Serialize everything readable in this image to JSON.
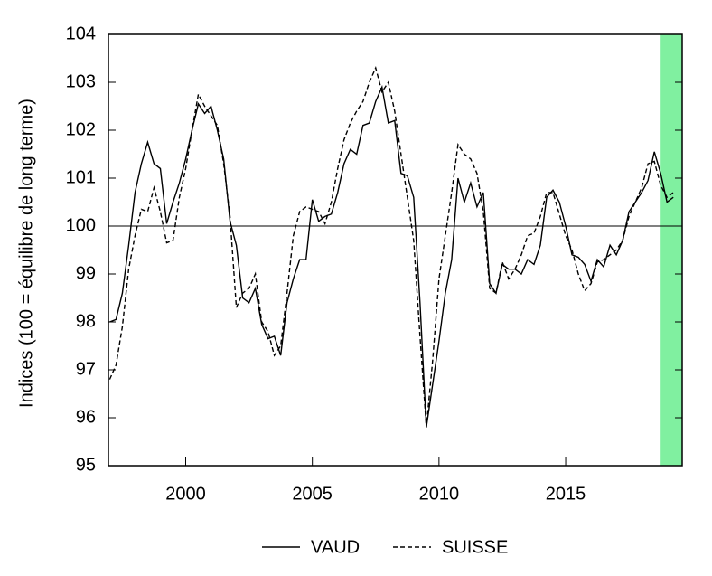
{
  "chart_data": {
    "type": "line",
    "y_label": "Indices (100 = équilibre de long terme)",
    "x": [
      1997.0,
      1997.25,
      1997.5,
      1997.75,
      1998.0,
      1998.25,
      1998.5,
      1998.75,
      1999.0,
      1999.25,
      1999.5,
      1999.75,
      2000.0,
      2000.25,
      2000.5,
      2000.75,
      2001.0,
      2001.25,
      2001.5,
      2001.75,
      2002.0,
      2002.25,
      2002.5,
      2002.75,
      2003.0,
      2003.25,
      2003.5,
      2003.75,
      2004.0,
      2004.25,
      2004.5,
      2004.75,
      2005.0,
      2005.25,
      2005.5,
      2005.75,
      2006.0,
      2006.25,
      2006.5,
      2006.75,
      2007.0,
      2007.25,
      2007.5,
      2007.75,
      2008.0,
      2008.25,
      2008.5,
      2008.75,
      2009.0,
      2009.25,
      2009.5,
      2009.75,
      2010.0,
      2010.25,
      2010.5,
      2010.75,
      2011.0,
      2011.25,
      2011.5,
      2011.75,
      2012.0,
      2012.25,
      2012.5,
      2012.75,
      2013.0,
      2013.25,
      2013.5,
      2013.75,
      2014.0,
      2014.25,
      2014.5,
      2014.75,
      2015.0,
      2015.25,
      2015.5,
      2015.75,
      2016.0,
      2016.25,
      2016.5,
      2016.75,
      2017.0,
      2017.25,
      2017.5,
      2017.75,
      2018.0,
      2018.25,
      2018.5,
      2018.75,
      2019.0,
      2019.25
    ],
    "series": [
      {
        "name": "VAUD",
        "color": "#000000",
        "dash": "solid",
        "values": [
          98.0,
          98.05,
          98.6,
          99.6,
          100.7,
          101.3,
          101.75,
          101.3,
          101.2,
          100.05,
          100.5,
          100.9,
          101.4,
          102.0,
          102.55,
          102.35,
          102.5,
          102.0,
          101.4,
          100.1,
          99.6,
          98.5,
          98.4,
          98.7,
          97.95,
          97.65,
          97.7,
          97.3,
          98.4,
          98.9,
          99.3,
          99.3,
          100.55,
          100.1,
          100.2,
          100.25,
          100.7,
          101.3,
          101.6,
          101.5,
          102.1,
          102.15,
          102.6,
          102.9,
          102.15,
          102.2,
          101.1,
          101.05,
          100.6,
          98.4,
          95.8,
          96.7,
          97.6,
          98.6,
          99.3,
          101.0,
          100.5,
          100.9,
          100.4,
          100.7,
          98.8,
          98.6,
          99.2,
          99.1,
          99.1,
          99.0,
          99.3,
          99.2,
          99.6,
          100.6,
          100.75,
          100.5,
          100.0,
          99.4,
          99.35,
          99.2,
          98.85,
          99.3,
          99.15,
          99.6,
          99.4,
          99.7,
          100.3,
          100.5,
          100.7,
          100.95,
          101.55,
          101.1,
          100.5,
          100.6
        ]
      },
      {
        "name": "SUISSE",
        "color": "#000000",
        "dash": "dashed",
        "values": [
          96.8,
          97.1,
          97.9,
          99.1,
          99.8,
          100.35,
          100.3,
          100.8,
          100.3,
          99.65,
          99.7,
          100.6,
          101.2,
          102.0,
          102.75,
          102.5,
          102.3,
          102.1,
          101.3,
          100.2,
          98.3,
          98.6,
          98.7,
          99.0,
          98.0,
          97.8,
          97.3,
          97.5,
          98.6,
          99.8,
          100.3,
          100.4,
          100.35,
          100.3,
          100.05,
          100.5,
          101.2,
          101.8,
          102.15,
          102.4,
          102.6,
          103.0,
          103.3,
          102.8,
          103.0,
          102.4,
          101.5,
          100.6,
          99.7,
          97.7,
          95.8,
          97.2,
          98.9,
          99.8,
          100.7,
          101.7,
          101.5,
          101.4,
          101.1,
          100.3,
          98.7,
          98.6,
          99.25,
          98.9,
          99.1,
          99.4,
          99.8,
          99.85,
          100.2,
          100.7,
          100.7,
          100.25,
          99.8,
          99.5,
          99.0,
          98.65,
          98.8,
          99.25,
          99.3,
          99.4,
          99.5,
          99.7,
          100.2,
          100.5,
          100.8,
          101.3,
          101.35,
          100.85,
          100.6,
          100.7
        ]
      }
    ],
    "xlim": [
      1996.95,
      2019.6
    ],
    "xticks": [
      2000,
      2005,
      2010,
      2015
    ],
    "ylim": [
      95,
      104
    ],
    "yticks": [
      95,
      96,
      97,
      98,
      99,
      100,
      101,
      102,
      103,
      104
    ],
    "reference_line": 100,
    "highlight": {
      "from": 2018.75,
      "to": 2019.6,
      "color": "#80f0a0"
    },
    "legend": "bottom"
  }
}
